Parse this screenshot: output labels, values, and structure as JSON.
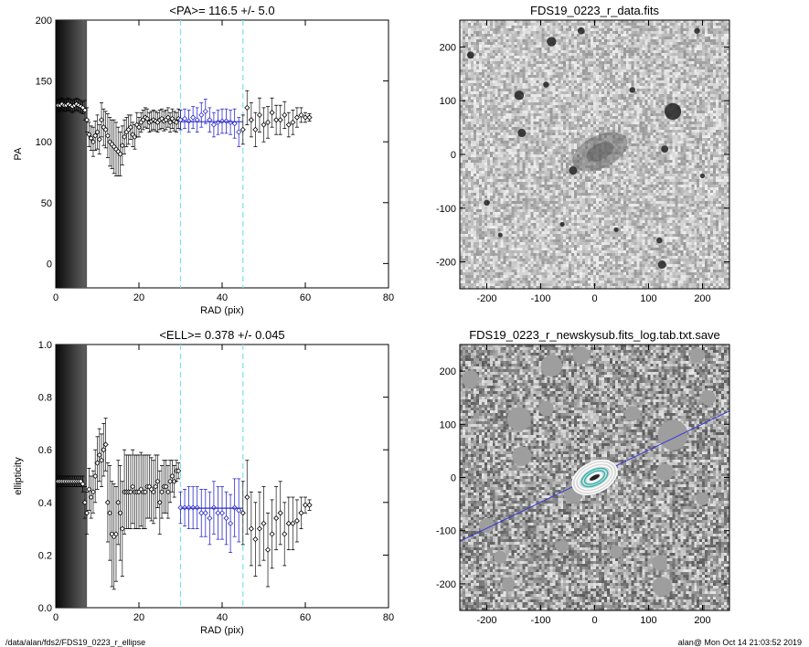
{
  "chart_data": [
    {
      "type": "scatter",
      "title": "<PA>= 116.5 +/-   5.0",
      "xlabel": "RAD (pix)",
      "ylabel": "PA",
      "xlim": [
        0,
        80
      ],
      "ylim": [
        -20,
        200
      ],
      "xticks": [
        0,
        20,
        40,
        60,
        80
      ],
      "yticks": [
        0,
        50,
        100,
        150,
        200
      ],
      "vlines": [
        30,
        45
      ],
      "mean_line": {
        "x": [
          30,
          45
        ],
        "y": 116.5
      },
      "series": [
        {
          "x": [
            0.5,
            1,
            1.5,
            2,
            2.5,
            3,
            3.5,
            4,
            4.5,
            5,
            5.5,
            6,
            6.5,
            7,
            7.5,
            8,
            8.5,
            9,
            9.5,
            10,
            10.5,
            11,
            11.5,
            12,
            12.5,
            13,
            13.5,
            14,
            14.5,
            15,
            15.5,
            16,
            16.5,
            17,
            17.5,
            18,
            18.5,
            19,
            19.5,
            20,
            20.5,
            21,
            21.5,
            22,
            22.5,
            23,
            23.5,
            24,
            24.5,
            25,
            25.5,
            26,
            26.5,
            27,
            27.5,
            28,
            28.5,
            29,
            29.5,
            30
          ],
          "y": [
            130,
            130,
            131,
            130,
            130,
            131,
            130,
            129,
            130,
            131,
            130,
            129,
            128,
            126,
            118,
            106,
            103,
            100,
            105,
            108,
            102,
            118,
            112,
            110,
            105,
            100,
            98,
            96,
            94,
            92,
            90,
            97,
            104,
            108,
            110,
            112,
            106,
            104,
            114,
            112,
            116,
            118,
            120,
            119,
            116,
            117,
            118,
            117,
            116,
            118,
            119,
            117,
            118,
            120,
            116,
            119,
            117,
            116,
            119,
            118
          ],
          "err": [
            5,
            5,
            5,
            5,
            5,
            5,
            5,
            5,
            5,
            5,
            5,
            5,
            5,
            8,
            10,
            10,
            10,
            12,
            12,
            14,
            12,
            14,
            15,
            15,
            18,
            20,
            20,
            22,
            22,
            20,
            18,
            16,
            14,
            12,
            12,
            10,
            10,
            10,
            10,
            8,
            8,
            8,
            8,
            8,
            8,
            8,
            8,
            8,
            8,
            8,
            8,
            8,
            8,
            8,
            8,
            8,
            8,
            8,
            8,
            8
          ]
        },
        {
          "x": [
            30,
            31,
            32,
            33,
            34,
            35,
            36,
            37,
            38,
            39,
            40,
            41,
            42,
            43,
            44
          ],
          "y": [
            118,
            119,
            117,
            120,
            118,
            122,
            125,
            118,
            114,
            116,
            117,
            117,
            116,
            115,
            108
          ],
          "err": [
            8,
            8,
            9,
            9,
            10,
            10,
            10,
            10,
            10,
            10,
            10,
            10,
            10,
            12,
            12
          ]
        },
        {
          "x": [
            45,
            46,
            47,
            48,
            49,
            50,
            51,
            52,
            53,
            54,
            55,
            56,
            57,
            58,
            59,
            60,
            61
          ],
          "y": [
            110,
            128,
            118,
            110,
            122,
            114,
            116,
            124,
            118,
            118,
            122,
            114,
            116,
            120,
            122,
            120,
            120
          ],
          "err": [
            12,
            14,
            14,
            14,
            14,
            14,
            13,
            12,
            12,
            12,
            11,
            10,
            10,
            8,
            6,
            4,
            3
          ]
        }
      ]
    },
    {
      "type": "scatter",
      "title": "<ELL>= 0.378 +/-  0.045",
      "xlabel": "RAD (pix)",
      "ylabel": "ellipticity",
      "xlim": [
        0,
        80
      ],
      "ylim": [
        0,
        1.0
      ],
      "xticks": [
        0,
        20,
        40,
        60,
        80
      ],
      "yticks": [
        0.0,
        0.2,
        0.4,
        0.6,
        0.8,
        1.0
      ],
      "vlines": [
        30,
        45
      ],
      "mean_line": {
        "x": [
          30,
          45
        ],
        "y": 0.378
      },
      "series": [
        {
          "x": [
            0.5,
            1,
            1.5,
            2,
            2.5,
            3,
            3.5,
            4,
            4.5,
            5,
            5.5,
            6,
            6.5,
            7,
            7.5,
            8,
            8.5,
            9,
            9.5,
            10,
            10.5,
            11,
            11.5,
            12,
            12.5,
            13,
            13.5,
            14,
            14.5,
            15,
            15.5,
            16,
            16.5,
            17,
            17.5,
            18,
            18.5,
            19,
            19.5,
            20,
            20.5,
            21,
            21.5,
            22,
            22.5,
            23,
            23.5,
            24,
            24.5,
            25,
            25.5,
            26,
            26.5,
            27,
            27.5,
            28,
            28.5,
            29,
            29.5
          ],
          "y": [
            0.48,
            0.48,
            0.48,
            0.48,
            0.48,
            0.48,
            0.48,
            0.48,
            0.48,
            0.48,
            0.48,
            0.48,
            0.47,
            0.4,
            0.36,
            0.45,
            0.42,
            0.44,
            0.5,
            0.55,
            0.58,
            0.56,
            0.6,
            0.62,
            0.4,
            0.36,
            0.28,
            0.27,
            0.28,
            0.4,
            0.36,
            0.3,
            0.44,
            0.44,
            0.44,
            0.44,
            0.46,
            0.44,
            0.44,
            0.44,
            0.45,
            0.44,
            0.44,
            0.46,
            0.46,
            0.45,
            0.44,
            0.46,
            0.48,
            0.4,
            0.44,
            0.46,
            0.46,
            0.44,
            0.48,
            0.5,
            0.48,
            0.52,
            0.52
          ],
          "err": [
            0.02,
            0.02,
            0.02,
            0.02,
            0.02,
            0.02,
            0.02,
            0.02,
            0.02,
            0.02,
            0.02,
            0.02,
            0.03,
            0.06,
            0.08,
            0.08,
            0.08,
            0.08,
            0.1,
            0.1,
            0.1,
            0.1,
            0.1,
            0.1,
            0.15,
            0.18,
            0.2,
            0.2,
            0.18,
            0.16,
            0.18,
            0.18,
            0.16,
            0.14,
            0.14,
            0.14,
            0.14,
            0.14,
            0.14,
            0.14,
            0.14,
            0.14,
            0.14,
            0.12,
            0.12,
            0.12,
            0.12,
            0.12,
            0.1,
            0.12,
            0.1,
            0.1,
            0.1,
            0.1,
            0.08,
            0.06,
            0.06,
            0.04,
            0.03
          ]
        },
        {
          "x": [
            30,
            31,
            32,
            33,
            34,
            35,
            36,
            37,
            38,
            39,
            40,
            41,
            42,
            43,
            44
          ],
          "y": [
            0.38,
            0.38,
            0.38,
            0.38,
            0.38,
            0.36,
            0.36,
            0.34,
            0.38,
            0.36,
            0.36,
            0.34,
            0.32,
            0.38,
            0.37
          ],
          "err": [
            0.06,
            0.07,
            0.08,
            0.08,
            0.08,
            0.09,
            0.09,
            0.1,
            0.1,
            0.1,
            0.1,
            0.1,
            0.11,
            0.11,
            0.12
          ]
        },
        {
          "x": [
            45,
            46,
            47,
            48,
            49,
            50,
            51,
            52,
            53,
            54,
            55,
            56,
            57,
            58,
            59,
            60,
            61
          ],
          "y": [
            0.36,
            0.42,
            0.3,
            0.26,
            0.3,
            0.32,
            0.22,
            0.28,
            0.34,
            0.36,
            0.28,
            0.32,
            0.32,
            0.33,
            0.36,
            0.39,
            0.39
          ],
          "err": [
            0.12,
            0.14,
            0.14,
            0.14,
            0.14,
            0.14,
            0.14,
            0.13,
            0.12,
            0.12,
            0.12,
            0.1,
            0.1,
            0.08,
            0.06,
            0.03,
            0.02
          ]
        }
      ]
    },
    {
      "type": "heatmap",
      "title": "FDS19_0223_r_data.fits",
      "xlim": [
        -250,
        250
      ],
      "ylim": [
        -250,
        250
      ],
      "xticks": [
        -200,
        -100,
        0,
        100,
        200
      ],
      "yticks": [
        -200,
        -100,
        0,
        100,
        200
      ],
      "colormap": "inverted grayscale",
      "sources": [
        {
          "x": -140,
          "y": 110,
          "r": 8
        },
        {
          "x": -135,
          "y": 40,
          "r": 7
        },
        {
          "x": -40,
          "y": -30,
          "r": 7
        },
        {
          "x": 125,
          "y": -205,
          "r": 7
        },
        {
          "x": 145,
          "y": 80,
          "r": 14
        },
        {
          "x": -80,
          "y": 210,
          "r": 8
        },
        {
          "x": -25,
          "y": 230,
          "r": 6
        },
        {
          "x": 130,
          "y": 10,
          "r": 6
        },
        {
          "x": -230,
          "y": 185,
          "r": 6
        },
        {
          "x": -200,
          "y": -90,
          "r": 5
        },
        {
          "x": 120,
          "y": -160,
          "r": 5
        },
        {
          "x": 70,
          "y": 120,
          "r": 5
        },
        {
          "x": -90,
          "y": 130,
          "r": 5
        },
        {
          "x": 200,
          "y": -40,
          "r": 4
        },
        {
          "x": -175,
          "y": -150,
          "r": 4
        },
        {
          "x": 40,
          "y": -140,
          "r": 4
        },
        {
          "x": -60,
          "y": -130,
          "r": 4
        },
        {
          "x": 190,
          "y": 230,
          "r": 5
        }
      ],
      "galaxy": {
        "x": 10,
        "y": 5,
        "rx": 55,
        "ry": 30,
        "angle_deg": 26
      }
    },
    {
      "type": "heatmap",
      "title": "FDS19_0223_r_newskysub.fits_log.tab.txt.save",
      "xlim": [
        -250,
        250
      ],
      "ylim": [
        -250,
        250
      ],
      "xticks": [
        -200,
        -100,
        0,
        100,
        200
      ],
      "yticks": [
        -200,
        -100,
        0,
        100,
        200
      ],
      "colormap": "grayscale residual",
      "masks": [
        {
          "x": -140,
          "y": 110,
          "r": 22
        },
        {
          "x": -135,
          "y": 40,
          "r": 18
        },
        {
          "x": -40,
          "y": -30,
          "r": 18
        },
        {
          "x": 125,
          "y": -205,
          "r": 18
        },
        {
          "x": 145,
          "y": 80,
          "r": 28
        },
        {
          "x": -80,
          "y": 210,
          "r": 20
        },
        {
          "x": -25,
          "y": 230,
          "r": 16
        },
        {
          "x": 130,
          "y": 10,
          "r": 16
        },
        {
          "x": -230,
          "y": 185,
          "r": 16
        },
        {
          "x": -200,
          "y": -90,
          "r": 14
        },
        {
          "x": 120,
          "y": -160,
          "r": 14
        },
        {
          "x": 70,
          "y": 120,
          "r": 14
        },
        {
          "x": -90,
          "y": 130,
          "r": 14
        },
        {
          "x": 200,
          "y": -40,
          "r": 12
        },
        {
          "x": -175,
          "y": -150,
          "r": 12
        },
        {
          "x": 40,
          "y": -140,
          "r": 12
        },
        {
          "x": -60,
          "y": -130,
          "r": 12
        },
        {
          "x": 190,
          "y": 230,
          "r": 14
        },
        {
          "x": -160,
          "y": -200,
          "r": 12
        },
        {
          "x": 210,
          "y": 150,
          "r": 14
        }
      ],
      "pa_line": {
        "x": [
          -250,
          250
        ],
        "y": [
          -120,
          125
        ]
      },
      "ellipse_center": {
        "x": 0,
        "y": 0
      },
      "ellipse_pa_deg": 26.5,
      "ellipses": [
        {
          "a": 8,
          "b": 4,
          "color": "#ffffff"
        },
        {
          "a": 14,
          "b": 7,
          "color": "#ffffff"
        },
        {
          "a": 20,
          "b": 10,
          "color": "#2ab7b0"
        },
        {
          "a": 26,
          "b": 14,
          "color": "#2ab7b0"
        },
        {
          "a": 32,
          "b": 18,
          "color": "#ffffff"
        },
        {
          "a": 38,
          "b": 23,
          "color": "#ffffff"
        },
        {
          "a": 44,
          "b": 28,
          "color": "#ffffff"
        }
      ]
    }
  ],
  "footer": {
    "path": "/data/alan/fds2/FDS19_0223_r_ellipse",
    "stamp": "alan@  Mon Oct 14 21:03:52 2019"
  }
}
